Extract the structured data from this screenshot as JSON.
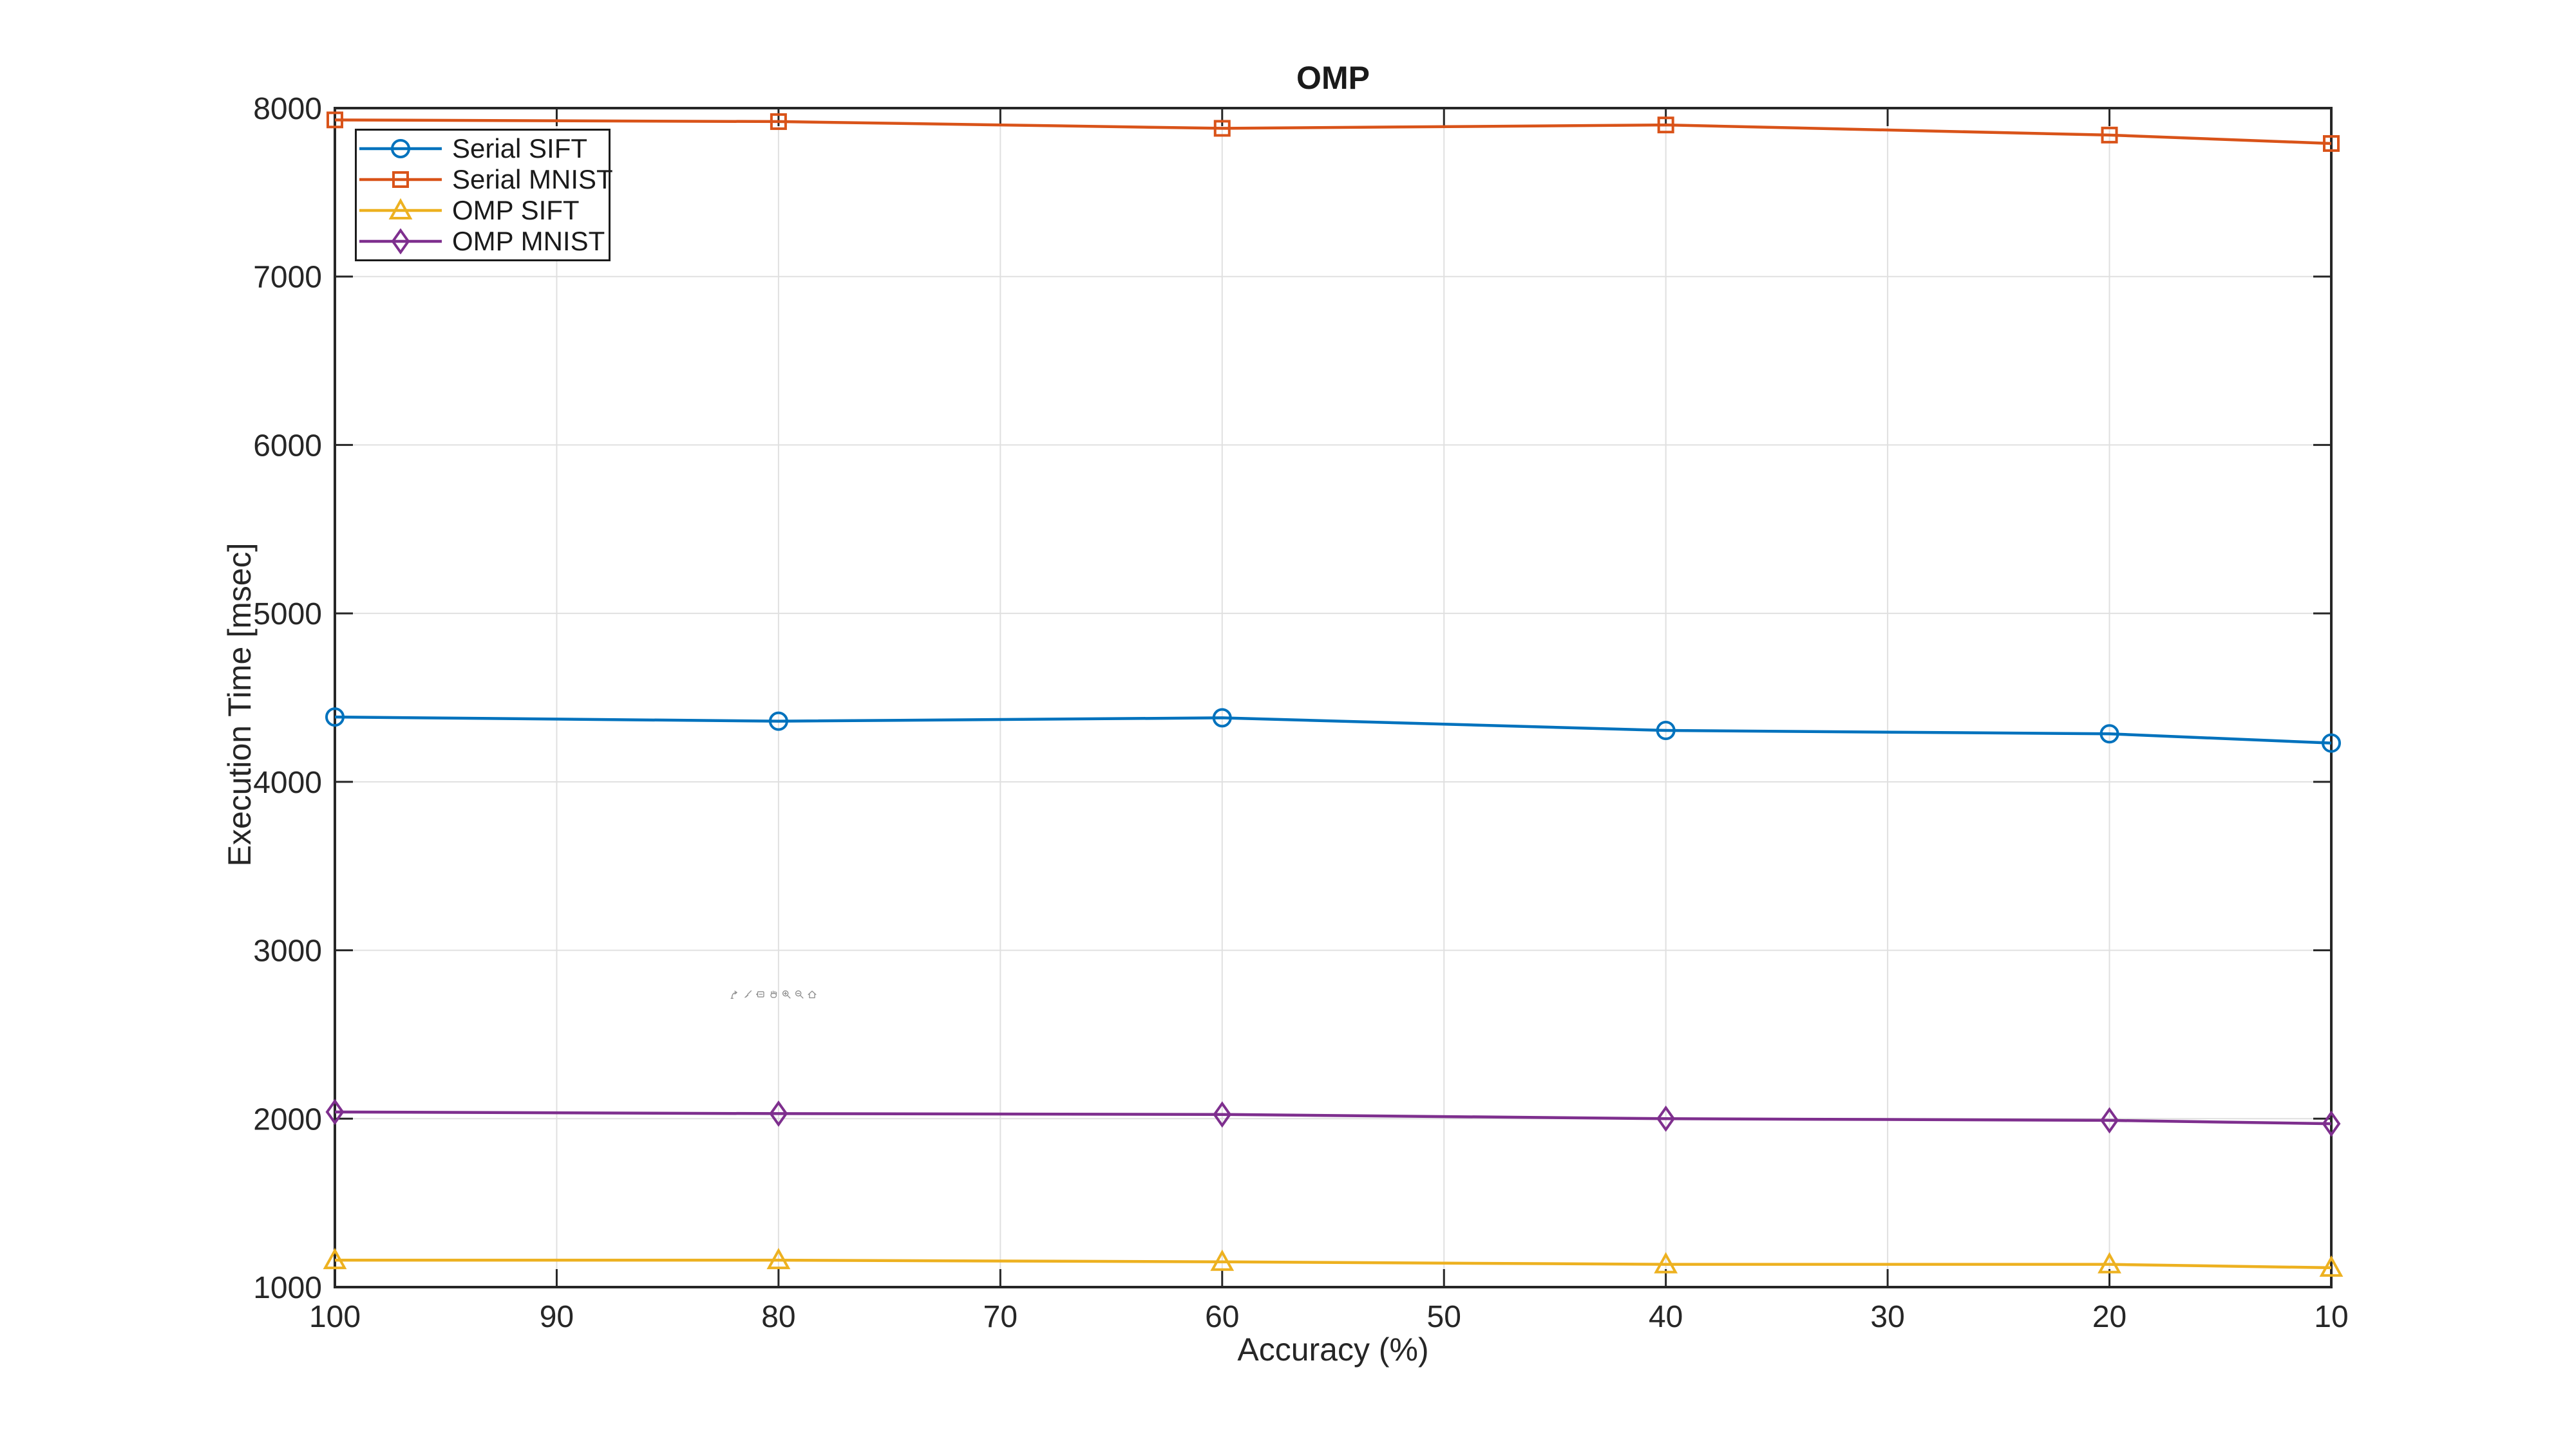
{
  "figure_title": "OMP",
  "chart_data": {
    "type": "line",
    "title": "OMP",
    "xlabel": "Accuracy (%)",
    "ylabel": "Execution Time [msec]",
    "x_axis_reversed": true,
    "xlim": [
      100,
      10
    ],
    "ylim": [
      1000,
      8000
    ],
    "x_ticks": [
      100,
      90,
      80,
      70,
      60,
      50,
      40,
      30,
      20,
      10
    ],
    "y_ticks": [
      1000,
      2000,
      3000,
      4000,
      5000,
      6000,
      7000,
      8000
    ],
    "grid": true,
    "legend_position": "top-left",
    "x": [
      100,
      80,
      60,
      40,
      20,
      10
    ],
    "series": [
      {
        "name": "Serial SIFT",
        "color": "#0072BD",
        "marker": "circle",
        "values": [
          4385,
          4360,
          4380,
          4305,
          4285,
          4230
        ]
      },
      {
        "name": "Serial MNIST",
        "color": "#D95319",
        "marker": "square",
        "values": [
          7930,
          7920,
          7880,
          7900,
          7840,
          7790
        ]
      },
      {
        "name": "OMP SIFT",
        "color": "#EDB120",
        "marker": "triangle",
        "values": [
          1160,
          1160,
          1150,
          1135,
          1135,
          1115
        ]
      },
      {
        "name": "OMP MNIST",
        "color": "#7E2F8E",
        "marker": "diamond",
        "values": [
          2040,
          2030,
          2025,
          2000,
          1990,
          1970
        ]
      }
    ]
  },
  "toolbar": {
    "icons": [
      "export-icon",
      "brush-icon",
      "datatip-icon",
      "pan-icon",
      "zoom-in-icon",
      "zoom-out-icon",
      "home-icon"
    ]
  },
  "colors": {
    "background": "#ffffff",
    "axis": "#262626",
    "grid": "#e0e0e0",
    "toolbar_icon": "#8f8f8f"
  }
}
